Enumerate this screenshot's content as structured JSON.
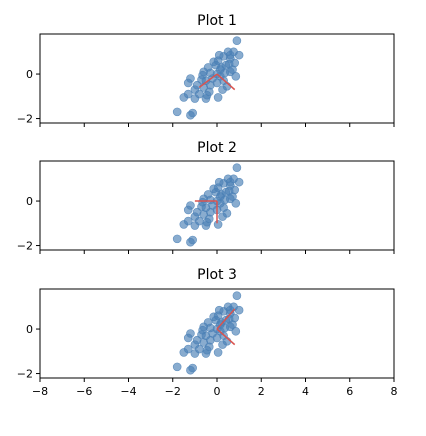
{
  "chart_data": [
    {
      "type": "scatter",
      "title": "Plot 1",
      "xlim": [
        -8,
        8
      ],
      "ylim": [
        -2.2,
        1.8
      ],
      "xticks": [
        -8,
        -6,
        -4,
        -2,
        0,
        2,
        4,
        6,
        8
      ],
      "xtick_labels": [],
      "yticks": [
        -2,
        0
      ],
      "ytick_labels": [
        "−2",
        "0"
      ],
      "grid": false,
      "point_color": "#4a7fb5",
      "line_color": "#d9534f",
      "points_ref": "points",
      "lines": [
        {
          "x": [
            0,
            -0.8
          ],
          "y": [
            0,
            -0.6
          ]
        },
        {
          "x": [
            0,
            0.8
          ],
          "y": [
            0,
            -0.7
          ]
        }
      ]
    },
    {
      "type": "scatter",
      "title": "Plot 2",
      "xlim": [
        -8,
        8
      ],
      "ylim": [
        -2.2,
        1.8
      ],
      "xticks": [
        -8,
        -6,
        -4,
        -2,
        0,
        2,
        4,
        6,
        8
      ],
      "xtick_labels": [],
      "yticks": [
        -2,
        0
      ],
      "ytick_labels": [
        "−2",
        "0"
      ],
      "grid": false,
      "point_color": "#4a7fb5",
      "line_color": "#d9534f",
      "points_ref": "points",
      "lines": [
        {
          "x": [
            0,
            -1.0
          ],
          "y": [
            0,
            0
          ]
        },
        {
          "x": [
            0,
            0
          ],
          "y": [
            0,
            -1.0
          ]
        }
      ]
    },
    {
      "type": "scatter",
      "title": "Plot 3",
      "xlim": [
        -8,
        8
      ],
      "ylim": [
        -2.2,
        1.8
      ],
      "xticks": [
        -8,
        -6,
        -4,
        -2,
        0,
        2,
        4,
        6,
        8
      ],
      "xtick_labels": [
        "−8",
        "−6",
        "−4",
        "−2",
        "0",
        "2",
        "4",
        "6",
        "8"
      ],
      "yticks": [
        -2,
        0
      ],
      "ytick_labels": [
        "−2",
        "0"
      ],
      "grid": false,
      "point_color": "#4a7fb5",
      "line_color": "#d9534f",
      "points_ref": "points",
      "lines": [
        {
          "x": [
            0,
            0.8
          ],
          "y": [
            0,
            0.9
          ]
        },
        {
          "x": [
            0,
            0.8
          ],
          "y": [
            0,
            -0.7
          ]
        }
      ]
    }
  ],
  "points": [
    [
      0.9,
      1.5
    ],
    [
      1.0,
      0.85
    ],
    [
      0.75,
      1.0
    ],
    [
      0.5,
      1.0
    ],
    [
      0.6,
      0.7
    ],
    [
      0.3,
      0.8
    ],
    [
      0.1,
      0.85
    ],
    [
      -0.05,
      0.4
    ],
    [
      0.2,
      0.3
    ],
    [
      0.4,
      0.4
    ],
    [
      0.55,
      0.45
    ],
    [
      0.8,
      0.5
    ],
    [
      0.7,
      0.2
    ],
    [
      -0.4,
      0.3
    ],
    [
      -0.6,
      0.1
    ],
    [
      -0.3,
      0.05
    ],
    [
      0.0,
      0.0
    ],
    [
      0.15,
      -0.1
    ],
    [
      0.35,
      0.05
    ],
    [
      0.6,
      0.1
    ],
    [
      -0.2,
      -0.2
    ],
    [
      -0.5,
      -0.3
    ],
    [
      -0.7,
      -0.25
    ],
    [
      -1.2,
      -0.2
    ],
    [
      -1.3,
      -0.4
    ],
    [
      -0.9,
      -0.5
    ],
    [
      -0.6,
      -0.6
    ],
    [
      -0.3,
      -0.5
    ],
    [
      0.0,
      -0.4
    ],
    [
      0.3,
      -0.3
    ],
    [
      -0.8,
      -0.9
    ],
    [
      -1.3,
      -0.9
    ],
    [
      -1.5,
      -1.05
    ],
    [
      -1.0,
      -1.1
    ],
    [
      -0.5,
      -1.1
    ],
    [
      0.05,
      -1.05
    ],
    [
      -1.8,
      -1.7
    ],
    [
      -1.2,
      -1.85
    ],
    [
      -1.1,
      -1.75
    ],
    [
      -0.45,
      -0.95
    ],
    [
      0.45,
      -0.55
    ],
    [
      0.85,
      -0.1
    ],
    [
      -0.15,
      0.55
    ],
    [
      0.25,
      -0.7
    ],
    [
      -1.0,
      -0.7
    ],
    [
      0.6,
      0.85
    ],
    [
      -0.65,
      -0.05
    ],
    [
      0.15,
      0.2
    ],
    [
      -0.35,
      -0.8
    ],
    [
      0.05,
      0.6
    ]
  ]
}
